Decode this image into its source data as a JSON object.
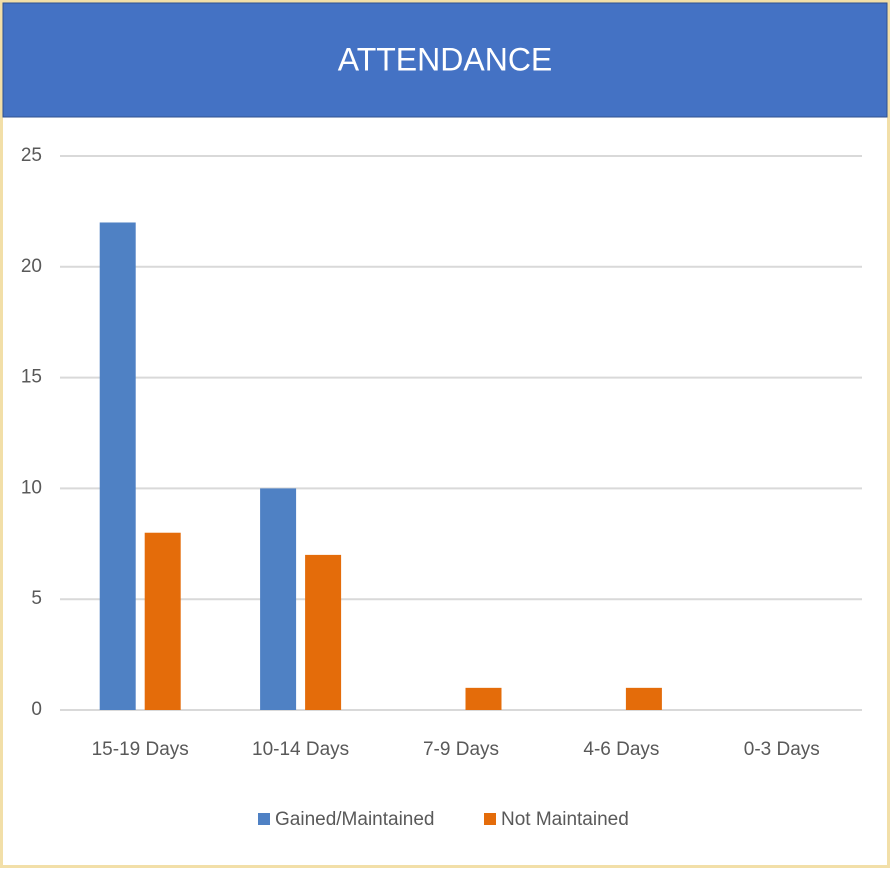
{
  "chart_data": {
    "type": "bar",
    "title": "ATTENDANCE",
    "categories": [
      "15-19 Days",
      "10-14 Days",
      "7-9 Days",
      "4-6 Days",
      "0-3 Days"
    ],
    "series": [
      {
        "name": "Gained/Maintained",
        "color": "#4f81c4",
        "values": [
          22,
          10,
          0,
          0,
          0
        ]
      },
      {
        "name": "Not Maintained",
        "color": "#e46c0a",
        "values": [
          8,
          7,
          1,
          1,
          0
        ]
      }
    ],
    "ylim": [
      0,
      25
    ],
    "yticks": [
      0,
      5,
      10,
      15,
      20,
      25
    ],
    "grid": true,
    "legend": "bottom"
  }
}
